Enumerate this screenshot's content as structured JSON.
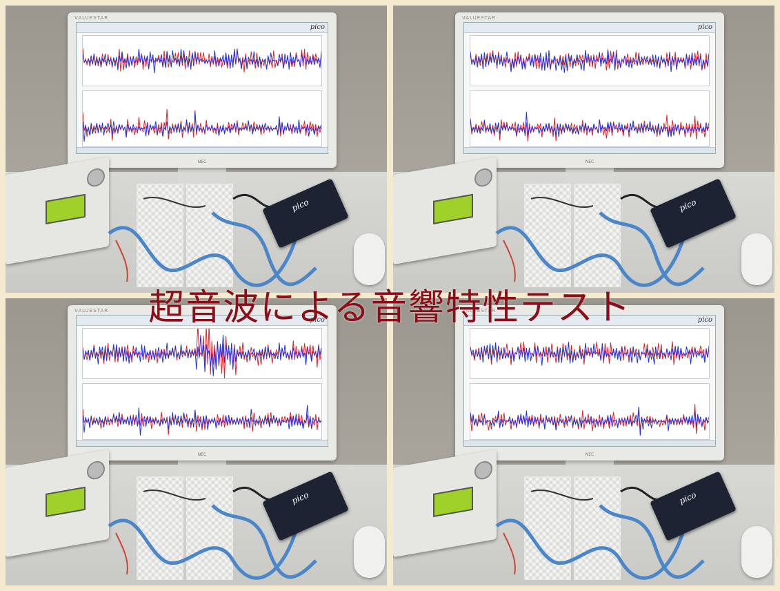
{
  "caption": "超音波による音響特性テスト",
  "monitor_brand": "VALUESTAR",
  "monitor_maker": "NEC",
  "screen_logo": "pico",
  "scope_label": "pico",
  "colors": {
    "caption": "#8b0f18",
    "trace_blue": "#2233dd",
    "trace_red": "#e0252a",
    "border": "#f3ead0"
  },
  "panels": [
    {
      "position": "top-left"
    },
    {
      "position": "top-right"
    },
    {
      "position": "bottom-left"
    },
    {
      "position": "bottom-right"
    }
  ]
}
